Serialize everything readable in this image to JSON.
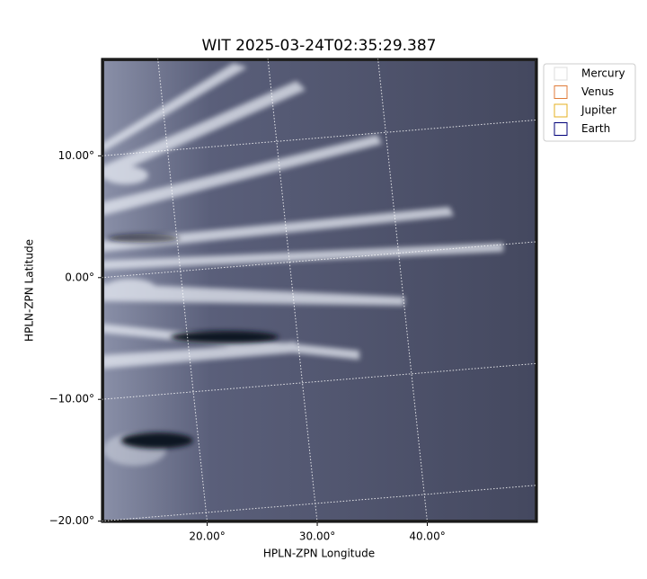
{
  "chart_data": {
    "type": "image",
    "title": "WIT 2025-03-24T02:35:29.387",
    "x_label": "HPLN-ZPN Longitude",
    "y_label": "HPLN-ZPN Latitude",
    "xlim": [
      10.4,
      50
    ],
    "ylim": [
      -20.1,
      18
    ],
    "xticks": [
      {
        "value": 20,
        "label": "20.00°"
      },
      {
        "value": 30,
        "label": "30.00°"
      },
      {
        "value": 40,
        "label": "40.00°"
      }
    ],
    "yticks": [
      {
        "value": 10,
        "label": "10.00°"
      },
      {
        "value": 0,
        "label": "0.00°"
      },
      {
        "value": -10,
        "label": "−10.00°"
      },
      {
        "value": -20,
        "label": "−20.00°"
      }
    ],
    "grid": true,
    "legend": "upper right",
    "series": [
      {
        "name": "Mercury",
        "color": "#dddddd"
      },
      {
        "name": "Venus",
        "color": "#e07b39"
      },
      {
        "name": "Jupiter",
        "color": "#e6b020"
      },
      {
        "name": "Earth",
        "color": "#00007a"
      }
    ]
  }
}
